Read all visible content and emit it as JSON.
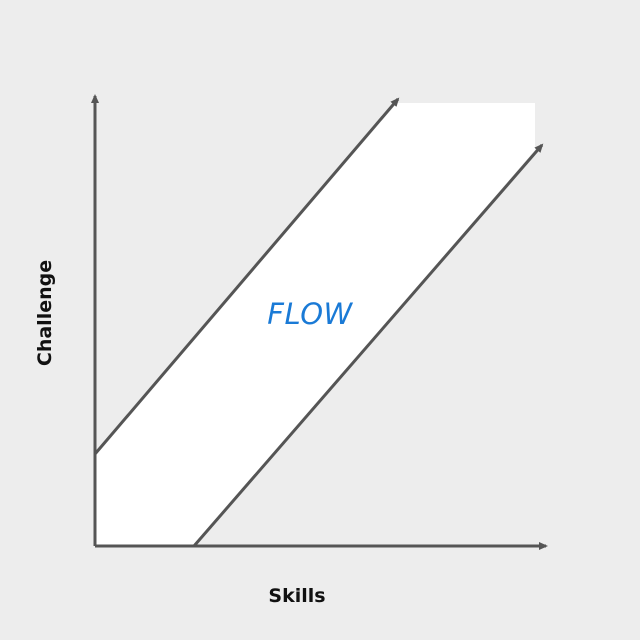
{
  "diagram": {
    "flow_label": "FLOW",
    "x_axis_label": "Skills",
    "y_axis_label": "Challenge"
  },
  "colors": {
    "background": "#ededed",
    "channel_fill": "#ffffff",
    "lines": "#555555",
    "flow_text": "#1a7ad6",
    "axis_text": "#111111"
  }
}
